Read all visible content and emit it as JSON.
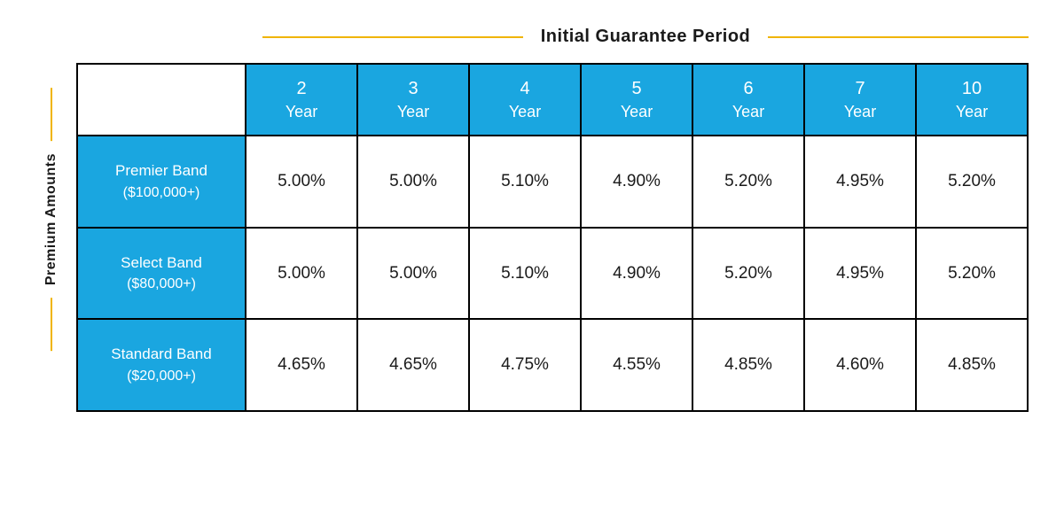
{
  "colors": {
    "brand": "#1aa6e0",
    "accent": "#f0b400",
    "border": "#000000",
    "bg": "#ffffff",
    "text": "#1a1a1a",
    "headerText": "#ffffff"
  },
  "axis": {
    "top": "Initial Guarantee Period",
    "left": "Premium Amounts"
  },
  "table": {
    "type": "table",
    "columns": [
      {
        "num": "2",
        "unit": "Year"
      },
      {
        "num": "3",
        "unit": "Year"
      },
      {
        "num": "4",
        "unit": "Year"
      },
      {
        "num": "5",
        "unit": "Year"
      },
      {
        "num": "6",
        "unit": "Year"
      },
      {
        "num": "7",
        "unit": "Year"
      },
      {
        "num": "10",
        "unit": "Year"
      }
    ],
    "rows": [
      {
        "name": "Premier Band",
        "sub": "($100,000+)",
        "values": [
          "5.00%",
          "5.00%",
          "5.10%",
          "4.90%",
          "5.20%",
          "4.95%",
          "5.20%"
        ]
      },
      {
        "name": "Select Band",
        "sub": "($80,000+)",
        "values": [
          "5.00%",
          "5.00%",
          "5.10%",
          "4.90%",
          "5.20%",
          "4.95%",
          "5.20%"
        ]
      },
      {
        "name": "Standard Band",
        "sub": "($20,000+)",
        "values": [
          "4.65%",
          "4.65%",
          "4.75%",
          "4.55%",
          "4.85%",
          "4.60%",
          "4.85%"
        ]
      }
    ],
    "col_width_first": 190,
    "row_header_fontsize": 17,
    "col_header_fontsize": 18,
    "cell_fontsize": 19,
    "border_width": 2
  }
}
